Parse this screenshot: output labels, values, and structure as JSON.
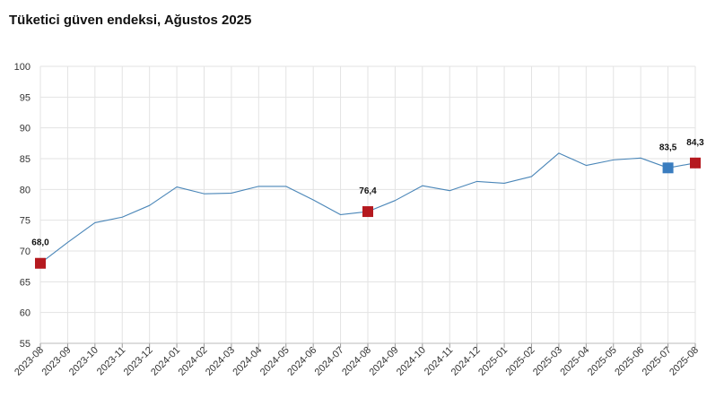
{
  "chart_data": {
    "type": "line",
    "title": "Tüketici güven endeksi, Ağustos 2025",
    "xlabel": "",
    "ylabel": "",
    "ylim": [
      55,
      100
    ],
    "yticks": [
      55,
      60,
      65,
      70,
      75,
      80,
      85,
      90,
      95,
      100
    ],
    "grid": true,
    "legend": "none",
    "line_color": "#4a86b8",
    "categories": [
      "2023-08",
      "2023-09",
      "2023-10",
      "2023-11",
      "2023-12",
      "2024-01",
      "2024-02",
      "2024-03",
      "2024-04",
      "2024-05",
      "2024-06",
      "2024-07",
      "2024-08",
      "2024-09",
      "2024-10",
      "2024-11",
      "2024-12",
      "2025-01",
      "2025-02",
      "2025-03",
      "2025-04",
      "2025-05",
      "2025-06",
      "2025-07",
      "2025-08"
    ],
    "series": [
      {
        "values": [
          68.0,
          71.4,
          74.6,
          75.5,
          77.4,
          80.4,
          79.3,
          79.4,
          80.5,
          80.5,
          78.3,
          75.9,
          76.4,
          78.2,
          80.6,
          79.8,
          81.3,
          81.0,
          82.1,
          85.9,
          83.9,
          84.8,
          85.1,
          83.5,
          84.3
        ]
      }
    ],
    "highlights": [
      {
        "category": "2023-08",
        "value": 68.0,
        "label": "68,0",
        "color": "#b5191f"
      },
      {
        "category": "2024-08",
        "value": 76.4,
        "label": "76,4",
        "color": "#b5191f"
      },
      {
        "category": "2025-07",
        "value": 83.5,
        "label": "83,5",
        "color": "#3a7dbf"
      },
      {
        "category": "2025-08",
        "value": 84.3,
        "label": "84,3",
        "color": "#b5191f"
      }
    ]
  }
}
